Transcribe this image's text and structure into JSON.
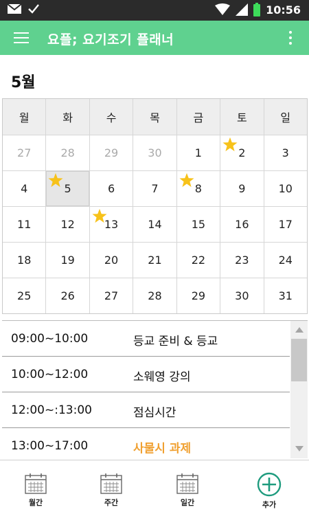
{
  "status_bar": {
    "clock": "10:56"
  },
  "app_bar": {
    "title": "요플; 요기조기 플래너"
  },
  "calendar": {
    "month_label": "5월",
    "weekdays": [
      "월",
      "화",
      "수",
      "목",
      "금",
      "토",
      "일"
    ],
    "weeks": [
      [
        {
          "day": "27",
          "other": true,
          "star": false
        },
        {
          "day": "28",
          "other": true,
          "star": false
        },
        {
          "day": "29",
          "other": true,
          "star": false
        },
        {
          "day": "30",
          "other": true,
          "star": false
        },
        {
          "day": "1",
          "other": false,
          "star": false
        },
        {
          "day": "2",
          "other": false,
          "star": true
        },
        {
          "day": "3",
          "other": false,
          "star": false
        }
      ],
      [
        {
          "day": "4",
          "other": false,
          "star": false
        },
        {
          "day": "5",
          "other": false,
          "star": true,
          "selected": true
        },
        {
          "day": "6",
          "other": false,
          "star": false
        },
        {
          "day": "7",
          "other": false,
          "star": false
        },
        {
          "day": "8",
          "other": false,
          "star": true
        },
        {
          "day": "9",
          "other": false,
          "star": false
        },
        {
          "day": "10",
          "other": false,
          "star": false
        }
      ],
      [
        {
          "day": "11",
          "other": false,
          "star": false
        },
        {
          "day": "12",
          "other": false,
          "star": false
        },
        {
          "day": "13",
          "other": false,
          "star": true
        },
        {
          "day": "14",
          "other": false,
          "star": false
        },
        {
          "day": "15",
          "other": false,
          "star": false
        },
        {
          "day": "16",
          "other": false,
          "star": false
        },
        {
          "day": "17",
          "other": false,
          "star": false
        }
      ],
      [
        {
          "day": "18",
          "other": false,
          "star": false
        },
        {
          "day": "19",
          "other": false,
          "star": false
        },
        {
          "day": "20",
          "other": false,
          "star": false
        },
        {
          "day": "21",
          "other": false,
          "star": false
        },
        {
          "day": "22",
          "other": false,
          "star": false
        },
        {
          "day": "23",
          "other": false,
          "star": false
        },
        {
          "day": "24",
          "other": false,
          "star": false
        }
      ],
      [
        {
          "day": "25",
          "other": false,
          "star": false
        },
        {
          "day": "26",
          "other": false,
          "star": false
        },
        {
          "day": "27",
          "other": false,
          "star": false
        },
        {
          "day": "28",
          "other": false,
          "star": false
        },
        {
          "day": "29",
          "other": false,
          "star": false
        },
        {
          "day": "30",
          "other": false,
          "star": false
        },
        {
          "day": "31",
          "other": false,
          "star": false
        }
      ]
    ]
  },
  "schedule": {
    "items": [
      {
        "time": "09:00~10:00",
        "event": "등교 준비 & 등교",
        "highlight": false
      },
      {
        "time": "10:00~12:00",
        "event": "소웨영 강의",
        "highlight": false
      },
      {
        "time": "12:00~:13:00",
        "event": "점심시간",
        "highlight": false
      },
      {
        "time": "13:00~17:00",
        "event": "사물시 과제",
        "highlight": true
      }
    ]
  },
  "bottom_nav": {
    "monthly_label": "월간",
    "weekly_label": "주간",
    "daily_label": "일간",
    "add_label": "추가"
  },
  "colors": {
    "app_bar": "#5fd18f",
    "star": "#f7c21a",
    "highlight_event": "#f0a030",
    "add_button": "#1e9b7e"
  },
  "icons": {
    "menu": "hamburger-icon",
    "more": "more-vertical-icon",
    "star": "star-icon",
    "calendar": "calendar-icon",
    "add": "plus-circle-icon"
  }
}
